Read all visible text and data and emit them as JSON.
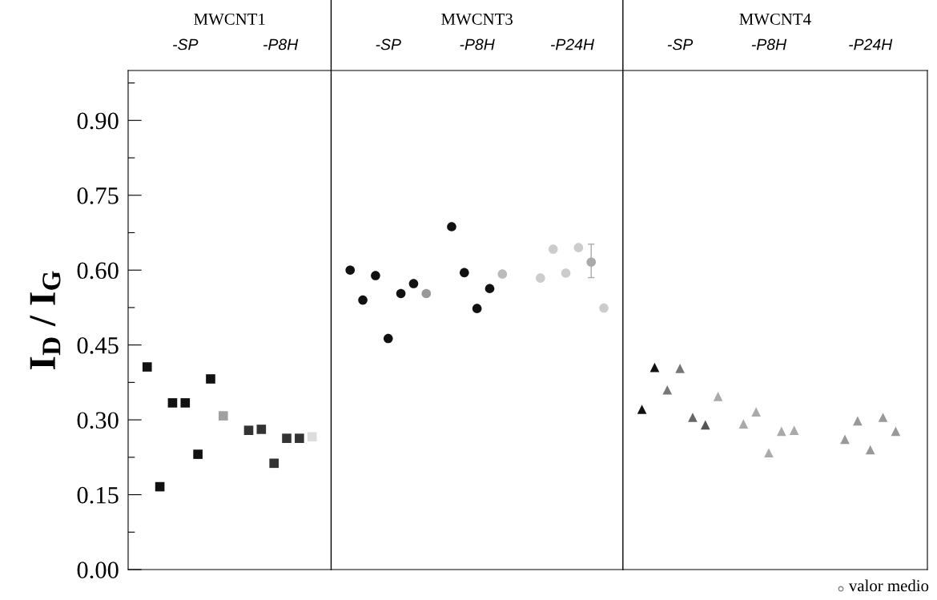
{
  "chart_data": {
    "type": "scatter",
    "ylabel": "I$_{D}$ / I$_{G}$",
    "categories": [
      null,
      null,
      null,
      null,
      null,
      null,
      null,
      null,
      null,
      null,
      null,
      null,
      null,
      null,
      null,
      null,
      null,
      null,
      null,
      null,
      null,
      null,
      null,
      null,
      null,
      null,
      null,
      null,
      null,
      null,
      null,
      null,
      null,
      null,
      null,
      null,
      null,
      null,
      null,
      null,
      null,
      null,
      null,
      null,
      null,
      null,
      null,
      null,
      null,
      null,
      null,
      null,
      null,
      null,
      null,
      null,
      null,
      null,
      null,
      null,
      null,
      null,
      null
    ],
    "annotations": [
      "MWCNT1",
      "MWCNT3",
      "MWCNT4",
      "-SP",
      "-P8H",
      "-SP",
      "-P8H",
      "-P24H",
      "-SP",
      "-P8H",
      "-P24H",
      "valor medio"
    ],
    "ylim": [
      0,
      1.0
    ],
    "yticks": [
      {
        "value": 0,
        "label": "0.00"
      },
      {
        "value": 0.075,
        "label": null
      },
      0.15,
      {
        "value": 0.225,
        "label": null
      },
      {
        "value": 0.3,
        "label": "0.30"
      },
      {
        "value": 0.375,
        "label": null
      },
      0.45,
      {
        "value": 0.525,
        "label": null
      },
      {
        "value": 0.6,
        "label": "0.60"
      },
      {
        "value": 0.675,
        "label": null
      },
      0.75,
      {
        "value": 0.825,
        "label": null
      },
      {
        "value": 0.9,
        "label": "0.90"
      },
      {
        "value": 0.975,
        "label": null
      }
    ],
    "series": [
      {
        "marker": "square",
        "values": [
          null,
          0.406,
          0.166,
          0.334,
          0.334,
          0.231,
          0.382,
          0.308,
          null,
          null,
          null,
          null,
          null,
          null,
          null,
          null,
          null,
          null,
          null,
          null,
          null,
          null,
          null,
          null,
          null,
          null,
          null,
          null,
          null,
          null,
          null,
          null,
          null,
          null,
          null,
          null,
          null,
          null,
          null,
          null,
          null,
          null,
          null,
          null,
          null,
          null,
          null,
          null,
          null,
          null,
          null,
          null,
          null,
          null,
          null,
          null,
          null,
          null,
          null,
          null,
          null,
          null,
          null
        ],
        "colors": [
          null,
          "#111111",
          "#111111",
          "#111111",
          "#111111",
          "#111111",
          "#111111",
          "#a0a0a0",
          null,
          null,
          null,
          null,
          null,
          null,
          null,
          null,
          null,
          null,
          null,
          null,
          null,
          null,
          null,
          null,
          null,
          null,
          null,
          null,
          null,
          null,
          null,
          null,
          null,
          null,
          null,
          null,
          null,
          null,
          null,
          null,
          null,
          null,
          null,
          null,
          null,
          null,
          null,
          null,
          null,
          null,
          null,
          null,
          null,
          null,
          null,
          null,
          null,
          null,
          null,
          null,
          null,
          null,
          null
        ]
      },
      {
        "marker": "square",
        "values": [
          null,
          null,
          null,
          null,
          null,
          null,
          null,
          null,
          null,
          0.279,
          0.281,
          0.213,
          0.263,
          0.263,
          0.266,
          null,
          null,
          null,
          null,
          null,
          null,
          null,
          null,
          null,
          null,
          null,
          null,
          null,
          null,
          null,
          null,
          null,
          null,
          null,
          null,
          null,
          null,
          null,
          null,
          null,
          null,
          null,
          null,
          null,
          null,
          null,
          null,
          null,
          null,
          null,
          null,
          null,
          null,
          null,
          null,
          null,
          null,
          null,
          null,
          null,
          null,
          null,
          null
        ],
        "colors": [
          null,
          null,
          null,
          null,
          null,
          null,
          null,
          null,
          null,
          "#333333",
          "#333333",
          "#333333",
          "#333333",
          "#333333",
          "#dddddd",
          null,
          null,
          null,
          null,
          null,
          null,
          null,
          null,
          null,
          null,
          null,
          null,
          null,
          null,
          null,
          null,
          null,
          null,
          null,
          null,
          null,
          null,
          null,
          null,
          null,
          null,
          null,
          null,
          null,
          null,
          null,
          null,
          null,
          null,
          null,
          null,
          null,
          null,
          null,
          null,
          null,
          null,
          null,
          null,
          null,
          null,
          null,
          null
        ]
      },
      {
        "marker": "circle",
        "values": [
          null,
          null,
          null,
          null,
          null,
          null,
          null,
          null,
          null,
          null,
          null,
          null,
          null,
          null,
          null,
          null,
          null,
          0.6,
          0.54,
          0.589,
          0.463,
          0.553,
          0.573,
          0.553,
          null,
          null,
          null,
          null,
          null,
          null,
          null,
          null,
          null,
          null,
          null,
          null,
          null,
          null,
          null,
          null,
          null,
          null,
          null,
          null,
          null,
          null,
          null,
          null,
          null,
          null,
          null,
          null,
          null,
          null,
          null,
          null,
          null,
          null,
          null,
          null,
          null,
          null,
          null
        ],
        "colors": [
          null,
          null,
          null,
          null,
          null,
          null,
          null,
          null,
          null,
          null,
          null,
          null,
          null,
          null,
          null,
          null,
          null,
          "#111111",
          "#111111",
          "#111111",
          "#111111",
          "#111111",
          "#111111",
          "#999999",
          null,
          null,
          null,
          null,
          null,
          null,
          null,
          null,
          null,
          null,
          null,
          null,
          null,
          null,
          null,
          null,
          null,
          null,
          null,
          null,
          null,
          null,
          null,
          null,
          null,
          null,
          null,
          null,
          null,
          null,
          null,
          null,
          null,
          null,
          null,
          null,
          null,
          null,
          null
        ]
      },
      {
        "marker": "circle",
        "values": [
          null,
          null,
          null,
          null,
          null,
          null,
          null,
          null,
          null,
          null,
          null,
          null,
          null,
          null,
          null,
          null,
          null,
          null,
          null,
          null,
          null,
          null,
          null,
          null,
          null,
          0.687,
          0.595,
          0.523,
          0.563,
          0.592,
          null,
          null,
          null,
          null,
          null,
          null,
          null,
          null,
          null,
          null,
          null,
          null,
          null,
          null,
          null,
          null,
          null,
          null,
          null,
          null,
          null,
          null,
          null,
          null,
          null,
          null,
          null,
          null,
          null,
          null,
          null,
          null,
          null
        ],
        "colors": [
          null,
          null,
          null,
          null,
          null,
          null,
          null,
          null,
          null,
          null,
          null,
          null,
          null,
          null,
          null,
          null,
          null,
          null,
          null,
          null,
          null,
          null,
          null,
          null,
          null,
          "#111111",
          "#111111",
          "#111111",
          "#111111",
          "#bbbbbb",
          null,
          null,
          null,
          null,
          null,
          null,
          null,
          null,
          null,
          null,
          null,
          null,
          null,
          null,
          null,
          null,
          null,
          null,
          null,
          null,
          null,
          null,
          null,
          null,
          null,
          null,
          null,
          null,
          null,
          null,
          null,
          null,
          null
        ]
      },
      {
        "marker": "circle",
        "values": [
          null,
          null,
          null,
          null,
          null,
          null,
          null,
          null,
          null,
          null,
          null,
          null,
          null,
          null,
          null,
          null,
          null,
          null,
          null,
          null,
          null,
          null,
          null,
          null,
          null,
          null,
          null,
          null,
          null,
          null,
          null,
          null,
          0.584,
          0.642,
          0.594,
          0.645,
          0.616,
          0.524,
          null,
          null,
          null,
          null,
          null,
          null,
          null,
          null,
          null,
          null,
          null,
          null,
          null,
          null,
          null,
          null,
          null,
          null,
          null,
          null,
          null,
          null,
          null,
          null,
          null
        ],
        "colors": [
          null,
          null,
          null,
          null,
          null,
          null,
          null,
          null,
          null,
          null,
          null,
          null,
          null,
          null,
          null,
          null,
          null,
          null,
          null,
          null,
          null,
          null,
          null,
          null,
          null,
          null,
          null,
          null,
          null,
          null,
          null,
          null,
          "#cccccc",
          "#cccccc",
          "#cccccc",
          "#cccccc",
          "#aaaaaa",
          "#cccccc",
          null,
          null,
          null,
          null,
          null,
          null,
          null,
          null,
          null,
          null,
          null,
          null,
          null,
          null,
          null,
          null,
          null,
          null,
          null,
          null,
          null,
          null,
          null,
          null,
          null
        ],
        "errors": [
          null,
          null,
          null,
          null,
          null,
          null,
          null,
          null,
          null,
          null,
          null,
          null,
          null,
          null,
          null,
          null,
          null,
          null,
          null,
          null,
          null,
          null,
          null,
          null,
          null,
          null,
          null,
          null,
          null,
          null,
          null,
          null,
          null,
          null,
          null,
          null,
          [
            0.585,
            0.652
          ],
          null,
          null,
          null,
          null,
          null,
          null,
          null,
          null,
          null,
          null,
          null,
          null,
          null,
          null,
          null,
          null,
          null,
          null,
          null,
          null,
          null,
          null,
          null,
          null,
          null,
          null
        ]
      },
      {
        "marker": "triangle",
        "values": [
          null,
          null,
          null,
          null,
          null,
          null,
          null,
          null,
          null,
          null,
          null,
          null,
          null,
          null,
          null,
          null,
          null,
          null,
          null,
          null,
          null,
          null,
          null,
          null,
          null,
          null,
          null,
          null,
          null,
          null,
          null,
          null,
          null,
          null,
          null,
          null,
          null,
          null,
          null,
          null,
          0.321,
          0.405,
          0.36,
          0.403,
          0.305,
          0.29,
          0.347,
          null,
          null,
          null,
          null,
          null,
          null,
          null,
          null,
          null,
          null,
          null,
          null,
          null,
          null,
          null,
          null
        ],
        "colors": [
          null,
          null,
          null,
          null,
          null,
          null,
          null,
          null,
          null,
          null,
          null,
          null,
          null,
          null,
          null,
          null,
          null,
          null,
          null,
          null,
          null,
          null,
          null,
          null,
          null,
          null,
          null,
          null,
          null,
          null,
          null,
          null,
          null,
          null,
          null,
          null,
          null,
          null,
          null,
          null,
          "#111111",
          "#111111",
          "#777777",
          "#777777",
          "#666666",
          "#555555",
          "#aaaaaa",
          null,
          null,
          null,
          null,
          null,
          null,
          null,
          null,
          null,
          null,
          null,
          null,
          null,
          null,
          null,
          null
        ]
      },
      {
        "marker": "triangle",
        "values": [
          null,
          null,
          null,
          null,
          null,
          null,
          null,
          null,
          null,
          null,
          null,
          null,
          null,
          null,
          null,
          null,
          null,
          null,
          null,
          null,
          null,
          null,
          null,
          null,
          null,
          null,
          null,
          null,
          null,
          null,
          null,
          null,
          null,
          null,
          null,
          null,
          null,
          null,
          null,
          null,
          null,
          null,
          null,
          null,
          null,
          null,
          null,
          null,
          0.292,
          0.316,
          0.234,
          0.277,
          0.279,
          null,
          null,
          null,
          null,
          null,
          null,
          null,
          null,
          null,
          null
        ],
        "colors": [
          null,
          null,
          null,
          null,
          null,
          null,
          null,
          null,
          null,
          null,
          null,
          null,
          null,
          null,
          null,
          null,
          null,
          null,
          null,
          null,
          null,
          null,
          null,
          null,
          null,
          null,
          null,
          null,
          null,
          null,
          null,
          null,
          null,
          null,
          null,
          null,
          null,
          null,
          null,
          null,
          null,
          null,
          null,
          null,
          null,
          null,
          null,
          null,
          "#aaaaaa",
          "#aaaaaa",
          "#aaaaaa",
          "#aaaaaa",
          "#aaaaaa",
          null,
          null,
          null,
          null,
          null,
          null,
          null,
          null,
          null,
          null
        ]
      },
      {
        "marker": "triangle",
        "values": [
          null,
          null,
          null,
          null,
          null,
          null,
          null,
          null,
          null,
          null,
          null,
          null,
          null,
          null,
          null,
          null,
          null,
          null,
          null,
          null,
          null,
          null,
          null,
          null,
          null,
          null,
          null,
          null,
          null,
          null,
          null,
          null,
          null,
          null,
          null,
          null,
          null,
          null,
          null,
          null,
          null,
          null,
          null,
          null,
          null,
          null,
          null,
          null,
          null,
          null,
          null,
          null,
          null,
          null,
          null,
          null,
          0.261,
          0.298,
          0.24,
          0.305,
          0.277,
          null,
          null
        ],
        "colors": [
          null,
          null,
          null,
          null,
          null,
          null,
          null,
          null,
          null,
          null,
          null,
          null,
          null,
          null,
          null,
          null,
          null,
          null,
          null,
          null,
          null,
          null,
          null,
          null,
          null,
          null,
          null,
          null,
          null,
          null,
          null,
          null,
          null,
          null,
          null,
          null,
          null,
          null,
          null,
          null,
          null,
          null,
          null,
          null,
          null,
          null,
          null,
          null,
          null,
          null,
          null,
          null,
          null,
          null,
          null,
          null,
          "#999999",
          "#999999",
          "#999999",
          "#999999",
          "#999999",
          null,
          null
        ]
      }
    ]
  }
}
